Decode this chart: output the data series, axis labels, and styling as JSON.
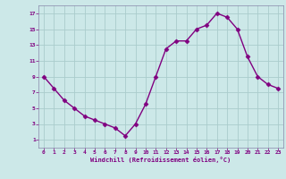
{
  "x": [
    0,
    1,
    2,
    3,
    4,
    5,
    6,
    7,
    8,
    9,
    10,
    11,
    12,
    13,
    14,
    15,
    16,
    17,
    18,
    19,
    20,
    21,
    22,
    23
  ],
  "y": [
    9,
    7.5,
    6,
    5,
    4,
    3.5,
    3,
    2.5,
    1.5,
    3,
    5.5,
    9,
    12.5,
    13.5,
    13.5,
    15,
    15.5,
    17,
    16.5,
    15,
    11.5,
    9,
    8,
    7.5
  ],
  "line_color": "#800080",
  "marker_color": "#800080",
  "bg_color": "#cce8e8",
  "grid_color": "#aacccc",
  "xlabel": "Windchill (Refroidissement éolien,°C)",
  "xlabel_color": "#800080",
  "tick_color": "#800080",
  "spine_color": "#8888aa",
  "ylim": [
    0,
    18
  ],
  "xlim": [
    -0.5,
    23.5
  ],
  "yticks": [
    1,
    3,
    5,
    7,
    9,
    11,
    13,
    15,
    17
  ],
  "xticks": [
    0,
    1,
    2,
    3,
    4,
    5,
    6,
    7,
    8,
    9,
    10,
    11,
    12,
    13,
    14,
    15,
    16,
    17,
    18,
    19,
    20,
    21,
    22,
    23
  ],
  "figsize": [
    3.2,
    2.0
  ],
  "dpi": 100
}
